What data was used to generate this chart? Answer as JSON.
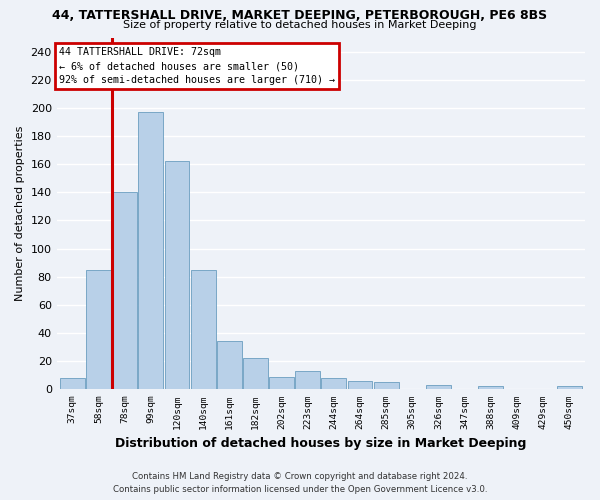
{
  "title": "44, TATTERSHALL DRIVE, MARKET DEEPING, PETERBOROUGH, PE6 8BS",
  "subtitle": "Size of property relative to detached houses in Market Deeping",
  "xlabel": "Distribution of detached houses by size in Market Deeping",
  "ylabel": "Number of detached properties",
  "x_labels": [
    "37sqm",
    "58sqm",
    "78sqm",
    "99sqm",
    "120sqm",
    "140sqm",
    "161sqm",
    "182sqm",
    "202sqm",
    "223sqm",
    "244sqm",
    "264sqm",
    "285sqm",
    "305sqm",
    "326sqm",
    "347sqm",
    "388sqm",
    "409sqm",
    "429sqm",
    "450sqm"
  ],
  "bar_color": "#b8d0e8",
  "bar_edge_color": "#6a9ec0",
  "highlight_bar_color": "#cc0000",
  "annotation_title": "44 TATTERSHALL DRIVE: 72sqm",
  "annotation_line1": "← 6% of detached houses are smaller (50)",
  "annotation_line2": "92% of semi-detached houses are larger (710) →",
  "annotation_box_color": "#cc0000",
  "ylim": [
    0,
    250
  ],
  "yticks": [
    0,
    20,
    40,
    60,
    80,
    100,
    120,
    140,
    160,
    180,
    200,
    220,
    240
  ],
  "footer1": "Contains HM Land Registry data © Crown copyright and database right 2024.",
  "footer2": "Contains public sector information licensed under the Open Government Licence v3.0.",
  "bg_color": "#eef2f8",
  "grid_color": "#ffffff",
  "all_bar_values": [
    8,
    85,
    140,
    197,
    162,
    85,
    34,
    22,
    9,
    13,
    8,
    6,
    5,
    0,
    3,
    0,
    2,
    0,
    0,
    2
  ]
}
